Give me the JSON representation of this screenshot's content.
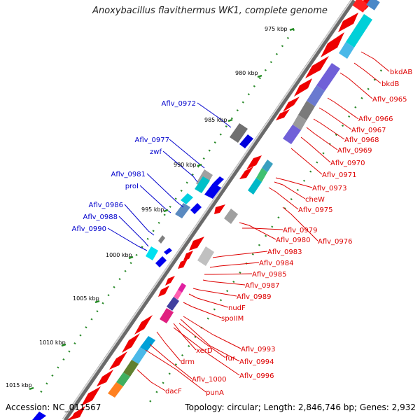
{
  "title": "Anoxybacillus flavithermus WK1, complete genome",
  "footer": {
    "accession": "Accession: NC_011567",
    "info": "Topology: circular; Length: 2,846,746 bp; Genes: 2,932"
  },
  "ticks": [
    "975 kbp",
    "980 kbp",
    "985 kbp",
    "990 kbp",
    "995 kbp",
    "1000 kbp",
    "1005 kbp",
    "1010 kbp",
    "1015 kbp"
  ],
  "left_labels": [
    "Aflv_0972",
    "Aflv_0977",
    "zwf",
    "Aflv_0981",
    "proI",
    "Aflv_0986",
    "Aflv_0988",
    "Aflv_0990"
  ],
  "right_labels": [
    "bkdAB",
    "bkdB",
    "Aflv_0965",
    "Aflv_0966",
    "Aflv_0967",
    "Aflv_0968",
    "Aflv_0969",
    "Aflv_0970",
    "Aflv_0971",
    "Aflv_0973",
    "cheW",
    "Aflv_0975",
    "Aflv_0979",
    "Aflv_0980",
    "Aflv_0976",
    "Aflv_0983",
    "Aflv_0984",
    "Aflv_0985",
    "Aflv_0987",
    "Aflv_0989",
    "nudF",
    "spoIIM",
    "Aflv_0993",
    "fur",
    "Aflv_0994",
    "Aflv_0996",
    "xerD",
    "drm",
    "Aflv_1000",
    "punA",
    "dacF"
  ],
  "colors": {
    "forward_strand": "#ee0000",
    "reverse_strand": "#0000ee",
    "backbone": "#888888",
    "label_left": "#0000cc",
    "label_right": "#dd0000",
    "gc_tick": "#228b22"
  }
}
